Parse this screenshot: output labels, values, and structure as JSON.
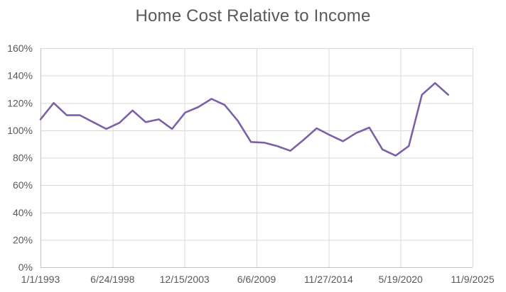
{
  "chart_data": {
    "type": "line",
    "title": "Home Cost Relative to Income",
    "series": [
      {
        "name": "Home Cost Relative to Income",
        "x_years": [
          1993,
          1994,
          1995,
          1996,
          1997,
          1998,
          1999,
          2000,
          2001,
          2002,
          2003,
          2004,
          2005,
          2006,
          2007,
          2008,
          2009,
          2010,
          2011,
          2012,
          2013,
          2014,
          2015,
          2016,
          2017,
          2018,
          2019,
          2020,
          2021,
          2022,
          2023,
          2024
        ],
        "values_pct": [
          108,
          120,
          111,
          111,
          106,
          101,
          105.5,
          114.5,
          106,
          108,
          101,
          113,
          117,
          123,
          118.5,
          107,
          91.5,
          91,
          88.5,
          85,
          93,
          101.5,
          96.5,
          92,
          98,
          102,
          86,
          81.5,
          88.5,
          126,
          134.5,
          126
        ]
      }
    ],
    "xlabel": "",
    "ylabel": "",
    "x_tick_labels": [
      "1/1/1993",
      "6/24/1998",
      "12/15/2003",
      "6/6/2009",
      "11/27/2014",
      "5/19/2020",
      "11/9/2025"
    ],
    "y_tick_labels": [
      "0%",
      "20%",
      "40%",
      "60%",
      "80%",
      "100%",
      "120%",
      "140%",
      "160%"
    ],
    "y_tick_values": [
      0,
      20,
      40,
      60,
      80,
      100,
      120,
      140,
      160
    ],
    "ylim": [
      0,
      160
    ],
    "grid": true,
    "legend_position": "none",
    "colors": {
      "line": "#7C61A8",
      "gridline": "#D9D9D9",
      "axis_line": "#C3C3C3",
      "text": "#595959",
      "background": "#FFFFFF",
      "title_text": "#595959"
    }
  }
}
